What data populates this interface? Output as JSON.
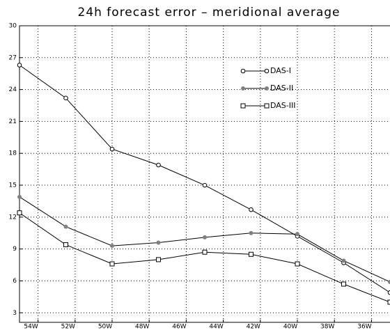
{
  "chart_data": {
    "type": "line",
    "title": "24h forecast error – meridional average",
    "x": [
      -55,
      -52.5,
      -50,
      -47.5,
      -45,
      -42.5,
      -40,
      -37.5,
      -35
    ],
    "series": [
      {
        "name": "DAS-I",
        "color": "#000000",
        "marker": "open-circle",
        "values": [
          26.3,
          23.2,
          18.4,
          16.9,
          15.0,
          12.7,
          10.2,
          7.7,
          4.9
        ]
      },
      {
        "name": "DAS-II",
        "color": "#808080",
        "marker": "filled-circle",
        "values": [
          13.9,
          11.1,
          9.3,
          9.6,
          10.1,
          10.5,
          10.4,
          7.9,
          5.9
        ]
      },
      {
        "name": "DAS-III",
        "color": "#000000",
        "marker": "open-square",
        "values": [
          12.4,
          9.4,
          7.6,
          8.0,
          8.7,
          8.5,
          7.6,
          5.7,
          4.0
        ]
      }
    ],
    "xlim": [
      -55,
      -35
    ],
    "xticks": [
      {
        "value": -54,
        "label": "54W"
      },
      {
        "value": -52,
        "label": "52W"
      },
      {
        "value": -50,
        "label": "50W"
      },
      {
        "value": -48,
        "label": "48W"
      },
      {
        "value": -46,
        "label": "46W"
      },
      {
        "value": -44,
        "label": "44W"
      },
      {
        "value": -42,
        "label": "42W"
      },
      {
        "value": -40,
        "label": "40W"
      },
      {
        "value": -38,
        "label": "38W"
      },
      {
        "value": -36,
        "label": "36W"
      }
    ],
    "ylim": [
      2.1,
      30
    ],
    "yticks": [
      3,
      6,
      9,
      12,
      15,
      18,
      21,
      24,
      27,
      30
    ],
    "grid": true,
    "legend": "upper-right"
  }
}
